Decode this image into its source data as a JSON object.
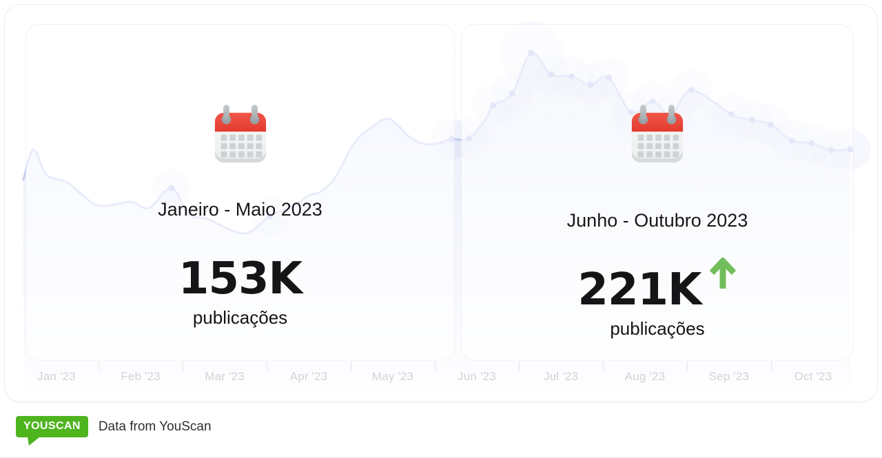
{
  "cards": [
    {
      "title": "Janeiro - Maio 2023",
      "value": "153K",
      "unit": "publicações",
      "icon": "calendar-icon"
    },
    {
      "title": "Junho - Outubro 2023",
      "value": "221K",
      "unit": "publicações",
      "icon": "calendar-icon",
      "trend": "up",
      "trend_icon": "arrow-up-icon"
    }
  ],
  "footer": {
    "logo_text": "YOUSCAN",
    "caption": "Data from YouScan"
  },
  "colors": {
    "logo_green": "#4eb41e",
    "trend_green": "#72bd5c",
    "line": "#c4cdf1",
    "dot": "#b6c1ed",
    "glow": "#cbd3f2",
    "calendar_red": "#e8493b",
    "axis_label": "#d3d3d7"
  },
  "chart_data": {
    "type": "area",
    "title": "",
    "x_labels": [
      "Jan '23",
      "Feb '23",
      "Mar '23",
      "Apr '23",
      "May '23",
      "Jun '23",
      "Jul '23",
      "Aug '23",
      "Sep '23",
      "Oct '23"
    ],
    "x_range": "Jan 2023 - Oct 2023",
    "y_axis": "relative publication volume (no visible scale)",
    "ylim": [
      0,
      100
    ],
    "grid": "faint dashed horizontal lines, no y tick labels",
    "legend": "none",
    "summary": [
      {
        "period": "Janeiro - Maio 2023",
        "total": "153K publicações"
      },
      {
        "period": "Junho - Outubro 2023",
        "total": "221K publicações",
        "trend": "up"
      }
    ],
    "series": [
      {
        "name": "publicações",
        "style": "smooth lavender line, point markers with soft glow, light area fill",
        "points": [
          {
            "t": 0.0,
            "v": 60.0
          },
          {
            "t": 0.012,
            "v": 68.8
          },
          {
            "t": 0.028,
            "v": 61.4
          },
          {
            "t": 0.052,
            "v": 59.4
          },
          {
            "t": 0.071,
            "v": 55.6
          },
          {
            "t": 0.089,
            "v": 52.6
          },
          {
            "t": 0.11,
            "v": 52.8
          },
          {
            "t": 0.131,
            "v": 53.6
          },
          {
            "t": 0.152,
            "v": 51.8
          },
          {
            "t": 0.179,
            "v": 57.6,
            "dot": true,
            "glow": 28
          },
          {
            "t": 0.2,
            "v": 50.0
          },
          {
            "t": 0.223,
            "v": 48.6
          },
          {
            "t": 0.267,
            "v": 44.4
          },
          {
            "t": 0.298,
            "v": 49.4,
            "dot": true,
            "glow": 28
          },
          {
            "t": 0.327,
            "v": 52.6
          },
          {
            "t": 0.345,
            "v": 55.4
          },
          {
            "t": 0.36,
            "v": 56.6
          },
          {
            "t": 0.377,
            "v": 60.6
          },
          {
            "t": 0.4,
            "v": 70.6
          },
          {
            "t": 0.423,
            "v": 75.6
          },
          {
            "t": 0.443,
            "v": 77.6
          },
          {
            "t": 0.467,
            "v": 72.4
          },
          {
            "t": 0.485,
            "v": 70.4
          },
          {
            "t": 0.502,
            "v": 70.6
          },
          {
            "t": 0.518,
            "v": 71.8,
            "dot": true
          },
          {
            "t": 0.539,
            "v": 72.0,
            "dot": true
          },
          {
            "t": 0.56,
            "v": 78.0
          },
          {
            "t": 0.568,
            "v": 81.6,
            "dot": true
          },
          {
            "t": 0.591,
            "v": 85.0,
            "dot": true
          },
          {
            "t": 0.614,
            "v": 96.8,
            "dot": true,
            "glow": 46
          },
          {
            "t": 0.638,
            "v": 90.6,
            "dot": true
          },
          {
            "t": 0.663,
            "v": 90.0,
            "dot": true
          },
          {
            "t": 0.686,
            "v": 87.6,
            "dot": true
          },
          {
            "t": 0.708,
            "v": 89.6,
            "dot": true
          },
          {
            "t": 0.735,
            "v": 79.6,
            "dot": true
          },
          {
            "t": 0.761,
            "v": 82.8,
            "dot": true
          },
          {
            "t": 0.783,
            "v": 78.6,
            "dot": true
          },
          {
            "t": 0.808,
            "v": 86.0,
            "dot": true
          },
          {
            "t": 0.856,
            "v": 79.0,
            "dot": true
          },
          {
            "t": 0.881,
            "v": 77.4,
            "dot": true
          },
          {
            "t": 0.904,
            "v": 76.0,
            "dot": true
          },
          {
            "t": 0.929,
            "v": 71.4,
            "dot": true
          },
          {
            "t": 0.953,
            "v": 70.6,
            "dot": true
          },
          {
            "t": 0.977,
            "v": 68.6,
            "dot": true
          },
          {
            "t": 1.0,
            "v": 68.8,
            "dot": true
          }
        ]
      }
    ]
  }
}
